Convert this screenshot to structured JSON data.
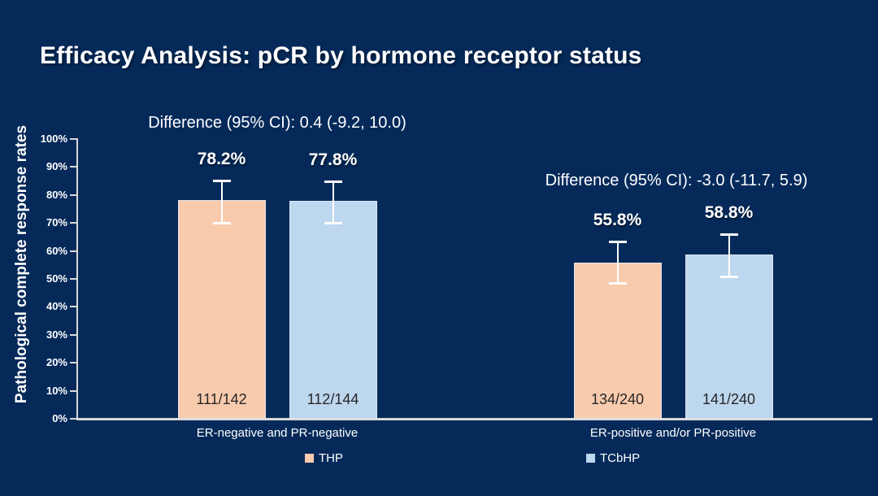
{
  "slide": {
    "title": "Efficacy Analysis: pCR by hormone receptor status"
  },
  "colors": {
    "background": "#052A5A",
    "axis": "#D9D9D9",
    "text": "#FFFFFF",
    "count_text": "#262626",
    "thp_fill": "#F8CBAD",
    "tcbhp_fill": "#BDD7EE"
  },
  "chart_data": {
    "type": "bar",
    "title": "Efficacy Analysis: pCR by hormone receptor status",
    "xlabel": "",
    "ylabel": "Pathological complete response rates",
    "ylim": [
      0,
      100
    ],
    "y_ticks": [
      "0%",
      "10%",
      "20%",
      "30%",
      "40%",
      "50%",
      "60%",
      "70%",
      "80%",
      "90%",
      "100%"
    ],
    "grid": false,
    "legend_position": "bottom",
    "categories": [
      "ER-negative and PR-negative",
      "ER-positive and/or PR-positive"
    ],
    "series": [
      {
        "name": "THP",
        "color": "#F8CBAD",
        "values": [
          78.2,
          55.8
        ],
        "value_labels": [
          "78.2%",
          "55.8%"
        ],
        "count_labels": [
          "111/142",
          "134/240"
        ],
        "ci_low": [
          70.2,
          48.5
        ],
        "ci_high": [
          85.2,
          63.5
        ]
      },
      {
        "name": "TCbHP",
        "color": "#BDD7EE",
        "values": [
          77.8,
          58.8
        ],
        "value_labels": [
          "77.8%",
          "58.8%"
        ],
        "count_labels": [
          "112/144",
          "141/240"
        ],
        "ci_low": [
          70.1,
          50.9
        ],
        "ci_high": [
          85.0,
          66.0
        ]
      }
    ],
    "annotations": [
      {
        "text": "Difference (95% CI): 0.4 (-9.2, 10.0)",
        "group": "ER-negative and PR-negative"
      },
      {
        "text": "Difference (95% CI): -3.0 (-11.7, 5.9)",
        "group": "ER-positive and/or PR-positive"
      }
    ],
    "legend": [
      "THP",
      "TCbHP"
    ]
  }
}
